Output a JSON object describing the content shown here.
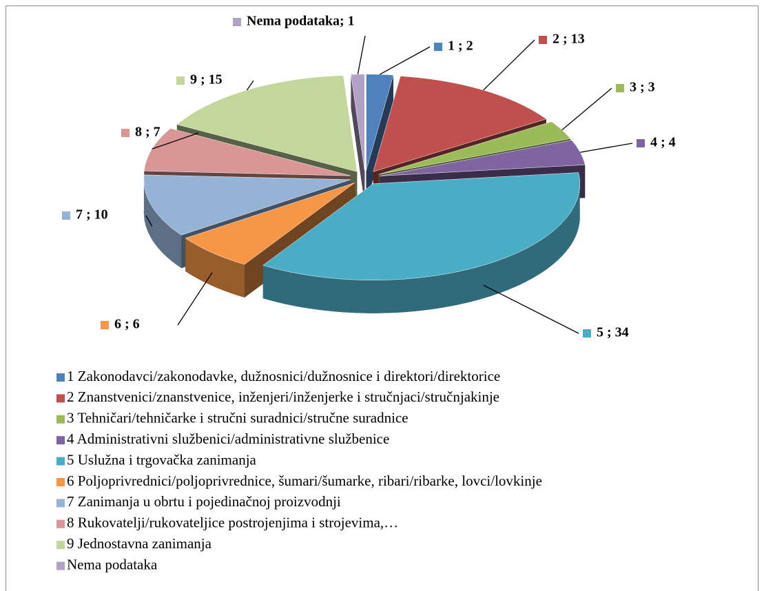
{
  "chart_data": {
    "type": "pie3d",
    "categories": [
      "1 Zakonodavci/zakonodavke, dužnosnici/dužnosnice i direktori/direktorice",
      "2 Znanstvenici/znanstvenice, inženjeri/inženjerke i stručnjaci/stručnjakinje",
      "3 Tehničari/tehničarke i stručni suradnici/stručne suradnice",
      "4 Administrativni službenici/administrativne službenice",
      "5 Uslužna i trgovačka zanimanja",
      "6 Poljoprivrednici/poljoprivrednice, šumari/šumarke, ribari/ribarke, lovci/lovkinje",
      "7 Zanimanja u obrtu i pojedinačnoj proizvodnji",
      "8 Rukovatelji/rukovateljice postrojenjima i strojevima,…",
      "9 Jednostavna zanimanja",
      "Nema podataka"
    ],
    "values": [
      2,
      13,
      3,
      4,
      34,
      6,
      10,
      7,
      15,
      1
    ],
    "value_labels": [
      "1 ; 2",
      "2 ; 13",
      "3 ; 3",
      "4 ; 4",
      "5 ; 34",
      "6 ; 6",
      "7 ; 10",
      "8 ; 7",
      "9 ; 15",
      "Nema podataka; 1"
    ],
    "colors": [
      "#4f81bd",
      "#c0504d",
      "#9bbb59",
      "#8064a2",
      "#4bacc6",
      "#f79646",
      "#95b3d7",
      "#d99694",
      "#c3d69b",
      "#b3a2c7"
    ],
    "legend": "bottom"
  }
}
